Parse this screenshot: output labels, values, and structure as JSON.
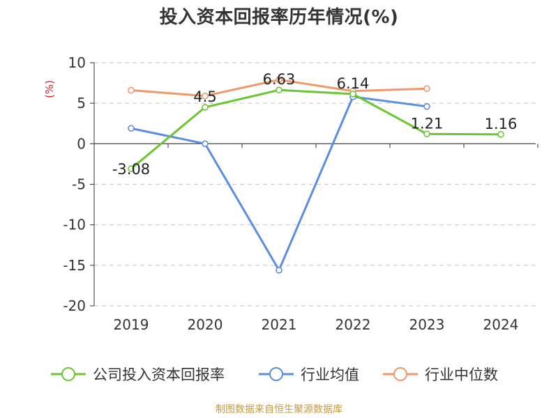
{
  "title": "投入资本回报率历年情况(%)",
  "footer": "制图数据来自恒生聚源数据库",
  "colors": {
    "company": "#6bc633",
    "industry_avg": "#5b8de0",
    "industry_median": "#f29868",
    "axis": "#333333",
    "grid": "#cccccc",
    "unit": "#e02020",
    "footer": "#c9993a"
  },
  "chart_data": {
    "type": "line",
    "title": "投入资本回报率历年情况(%)",
    "ylabel": "(%)",
    "xlabel": "",
    "ylim": [
      -20,
      10
    ],
    "yticks": [
      "10",
      "5",
      "0",
      "-5",
      "-10",
      "-15",
      "-20"
    ],
    "ytick_values": [
      10,
      5,
      0,
      -5,
      -10,
      -15,
      -20
    ],
    "categories": [
      "2019",
      "2020",
      "2021",
      "2022",
      "2023",
      "2024"
    ],
    "grid": true,
    "legend_position": "bottom",
    "series": [
      {
        "key": "company",
        "name": "公司投入资本回报率",
        "values": [
          -3.08,
          4.5,
          6.63,
          6.14,
          1.21,
          1.16
        ],
        "labels": [
          "-3.08",
          "4.5",
          "6.63",
          "6.14",
          "1.21",
          "1.16"
        ],
        "color": "#6bc633"
      },
      {
        "key": "industry_avg",
        "name": "行业均值",
        "values": [
          1.9,
          0.0,
          -15.6,
          5.8,
          4.6,
          null
        ],
        "color": "#5b8de0"
      },
      {
        "key": "industry_median",
        "name": "行业中位数",
        "values": [
          6.6,
          5.9,
          7.9,
          6.5,
          6.8,
          null
        ],
        "color": "#f29868"
      }
    ]
  }
}
